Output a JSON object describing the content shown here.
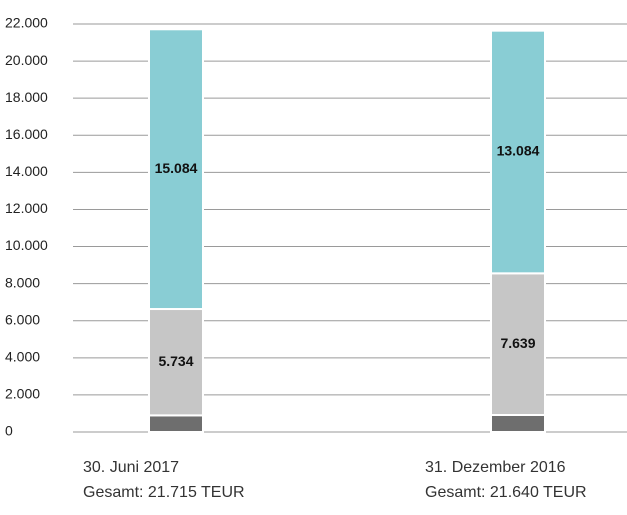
{
  "chart_data": {
    "type": "stacked_bar",
    "categories": [
      "30. Juni 2017",
      "31. Dezember 2016"
    ],
    "category_totals": [
      "Gesamt: 21.715 TEUR",
      "Gesamt: 21.640 TEUR"
    ],
    "series": [
      {
        "color": "#6e6e6e",
        "values": [
          897,
          917
        ]
      },
      {
        "color": "#c6c6c6",
        "values": [
          5734,
          7639
        ],
        "value_labels": [
          "5.734",
          "7.639"
        ]
      },
      {
        "color": "#89cdd4",
        "values": [
          15084,
          13084
        ],
        "value_labels": [
          "15.084",
          "13.084"
        ]
      }
    ],
    "ylim": [
      0,
      22000
    ],
    "yticks": [
      0,
      {
        "value": 2000,
        "label": "2.000"
      },
      {
        "value": 4000,
        "label": "4.000"
      },
      {
        "value": 6000,
        "label": "6.000"
      },
      {
        "value": 8000,
        "label": "8.000"
      },
      {
        "value": 10000,
        "label": "10.000"
      },
      {
        "value": 12000,
        "label": "12.000"
      },
      {
        "value": 14000,
        "label": "14.000"
      },
      {
        "value": 16000,
        "label": "16.000"
      },
      {
        "value": 18000,
        "label": "18.000"
      },
      {
        "value": 20000,
        "label": "20.000"
      },
      {
        "value": 22000,
        "label": "22.000"
      }
    ],
    "grid": true
  }
}
